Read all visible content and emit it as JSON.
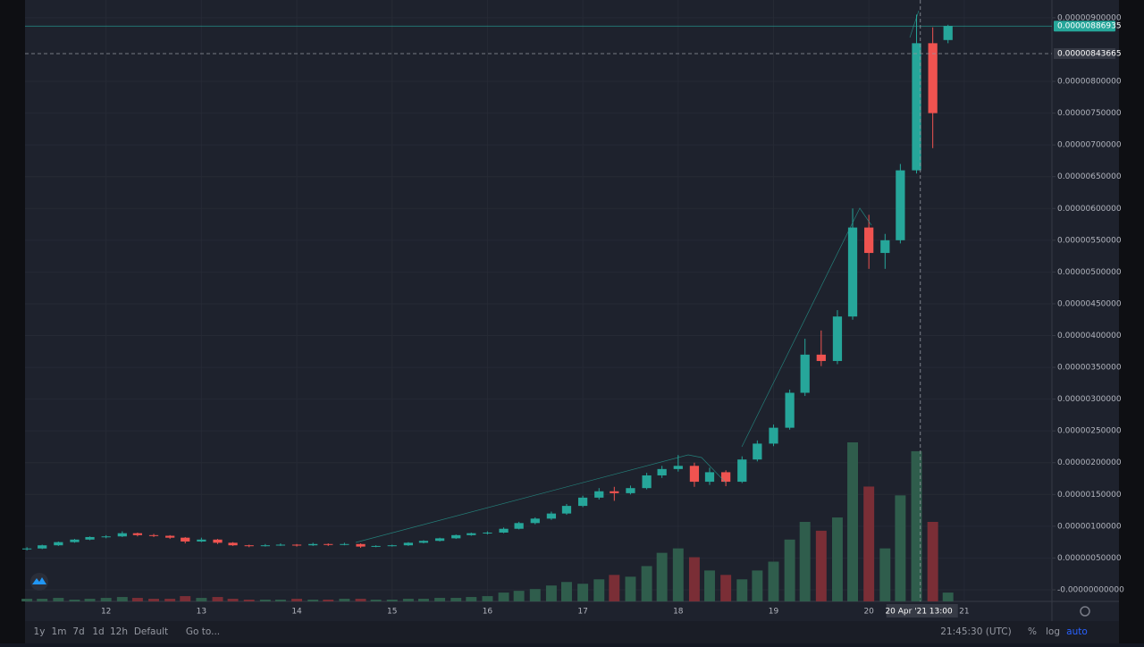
{
  "chart_data": {
    "type": "candlestick",
    "x": [
      11.17,
      11.33,
      11.5,
      11.67,
      11.83,
      12,
      12.17,
      12.33,
      12.5,
      12.67,
      12.83,
      13,
      13.17,
      13.33,
      13.5,
      13.67,
      13.83,
      14,
      14.17,
      14.33,
      14.5,
      14.67,
      14.83,
      15,
      15.17,
      15.33,
      15.5,
      15.67,
      15.83,
      16,
      16.17,
      16.33,
      16.5,
      16.67,
      16.83,
      17,
      17.17,
      17.33,
      17.5,
      17.67,
      17.83,
      18,
      18.17,
      18.33,
      18.5,
      18.67,
      18.83,
      19,
      19.17,
      19.33,
      19.5,
      19.67,
      19.83,
      20,
      20.17,
      20.33,
      20.5,
      20.67,
      20.83
    ],
    "candles": [
      [
        6.4e-07,
        6.7e-07,
        6.2e-07,
        6.5e-07
      ],
      [
        6.5e-07,
        7.1e-07,
        6.4e-07,
        7e-07
      ],
      [
        7e-07,
        7.6e-07,
        6.9e-07,
        7.5e-07
      ],
      [
        7.5e-07,
        8e-07,
        7.4e-07,
        7.9e-07
      ],
      [
        7.9e-07,
        8.4e-07,
        7.8e-07,
        8.3e-07
      ],
      [
        8.3e-07,
        8.6e-07,
        8.1e-07,
        8.4e-07
      ],
      [
        8.4e-07,
        9.2e-07,
        8.3e-07,
        8.9e-07
      ],
      [
        8.9e-07,
        9e-07,
        8.4e-07,
        8.6e-07
      ],
      [
        8.6e-07,
        8.8e-07,
        8.3e-07,
        8.5e-07
      ],
      [
        8.5e-07,
        8.6e-07,
        8e-07,
        8.2e-07
      ],
      [
        8.2e-07,
        8.3e-07,
        7.3e-07,
        7.6e-07
      ],
      [
        7.6e-07,
        8.2e-07,
        7.5e-07,
        7.9e-07
      ],
      [
        7.9e-07,
        8e-07,
        7.2e-07,
        7.4e-07
      ],
      [
        7.4e-07,
        7.5e-07,
        6.9e-07,
        7e-07
      ],
      [
        7e-07,
        7.1e-07,
        6.7e-07,
        6.9e-07
      ],
      [
        6.9e-07,
        7.2e-07,
        6.8e-07,
        7e-07
      ],
      [
        7e-07,
        7.3e-07,
        6.9e-07,
        7.1e-07
      ],
      [
        7.1e-07,
        7.2e-07,
        6.8e-07,
        7e-07
      ],
      [
        7e-07,
        7.4e-07,
        6.9e-07,
        7.2e-07
      ],
      [
        7.2e-07,
        7.3e-07,
        6.9e-07,
        7.1e-07
      ],
      [
        7.1e-07,
        7.4e-07,
        7e-07,
        7.2e-07
      ],
      [
        7.2e-07,
        7.3e-07,
        6.6e-07,
        6.8e-07
      ],
      [
        6.8e-07,
        7e-07,
        6.7e-07,
        6.9e-07
      ],
      [
        6.9e-07,
        7.1e-07,
        6.8e-07,
        7e-07
      ],
      [
        7e-07,
        7.5e-07,
        6.9e-07,
        7.4e-07
      ],
      [
        7.4e-07,
        7.8e-07,
        7.3e-07,
        7.7e-07
      ],
      [
        7.7e-07,
        8.2e-07,
        7.6e-07,
        8.1e-07
      ],
      [
        8.1e-07,
        8.7e-07,
        8e-07,
        8.6e-07
      ],
      [
        8.6e-07,
        9e-07,
        8.5e-07,
        8.9e-07
      ],
      [
        8.9e-07,
        9.2e-07,
        8.7e-07,
        9e-07
      ],
      [
        9e-07,
        9.8e-07,
        8.9e-07,
        9.6e-07
      ],
      [
        9.6e-07,
        1.07e-06,
        9.5e-07,
        1.05e-06
      ],
      [
        1.05e-06,
        1.14e-06,
        1.03e-06,
        1.12e-06
      ],
      [
        1.12e-06,
        1.23e-06,
        1.1e-06,
        1.2e-06
      ],
      [
        1.2e-06,
        1.35e-06,
        1.18e-06,
        1.32e-06
      ],
      [
        1.32e-06,
        1.48e-06,
        1.3e-06,
        1.45e-06
      ],
      [
        1.45e-06,
        1.6e-06,
        1.42e-06,
        1.55e-06
      ],
      [
        1.55e-06,
        1.62e-06,
        1.4e-06,
        1.52e-06
      ],
      [
        1.52e-06,
        1.64e-06,
        1.5e-06,
        1.6e-06
      ],
      [
        1.6e-06,
        1.84e-06,
        1.58e-06,
        1.8e-06
      ],
      [
        1.8e-06,
        1.95e-06,
        1.76e-06,
        1.9e-06
      ],
      [
        1.9e-06,
        2.12e-06,
        1.86e-06,
        1.95e-06
      ],
      [
        1.95e-06,
        2e-06,
        1.62e-06,
        1.7e-06
      ],
      [
        1.7e-06,
        1.92e-06,
        1.65e-06,
        1.85e-06
      ],
      [
        1.85e-06,
        1.88e-06,
        1.63e-06,
        1.7e-06
      ],
      [
        1.7e-06,
        2.1e-06,
        1.68e-06,
        2.05e-06
      ],
      [
        2.05e-06,
        2.35e-06,
        2.02e-06,
        2.3e-06
      ],
      [
        2.3e-06,
        2.6e-06,
        2.26e-06,
        2.55e-06
      ],
      [
        2.55e-06,
        3.15e-06,
        2.52e-06,
        3.1e-06
      ],
      [
        3.1e-06,
        3.95e-06,
        3.05e-06,
        3.7e-06
      ],
      [
        3.7e-06,
        4.08e-06,
        3.52e-06,
        3.6e-06
      ],
      [
        3.6e-06,
        4.4e-06,
        3.55e-06,
        4.3e-06
      ],
      [
        4.3e-06,
        6e-06,
        4.25e-06,
        5.7e-06
      ],
      [
        5.7e-06,
        5.9e-06,
        5.05e-06,
        5.3e-06
      ],
      [
        5.3e-06,
        5.6e-06,
        5.05e-06,
        5.5e-06
      ],
      [
        5.5e-06,
        6.7e-06,
        5.45e-06,
        6.6e-06
      ],
      [
        6.6e-06,
        9.05e-06,
        6.55e-06,
        8.6e-06
      ],
      [
        8.6e-06,
        8.85e-06,
        6.95e-06,
        7.5e-06
      ],
      [
        8.65e-06,
        8.89e-06,
        8.6e-06,
        8.87e-06
      ]
    ],
    "volume": [
      3,
      3,
      4,
      2,
      3,
      4,
      5,
      4,
      3,
      3,
      6,
      4,
      5,
      3,
      2,
      2,
      2,
      3,
      2,
      2,
      3,
      3,
      2,
      2,
      3,
      3,
      4,
      4,
      5,
      6,
      10,
      12,
      14,
      18,
      22,
      20,
      25,
      30,
      28,
      40,
      55,
      60,
      50,
      35,
      30,
      25,
      35,
      45,
      70,
      90,
      80,
      95,
      180,
      130,
      60,
      120,
      170,
      90,
      10
    ],
    "up_color": "#26a69a",
    "down_color": "#ef5350",
    "up_volume_color": "#2f5d4c",
    "down_volume_color": "#7a2e36",
    "xlim": [
      11.15,
      21.92
    ],
    "xticks": [
      12,
      13,
      14,
      15,
      16,
      17,
      18,
      19,
      20,
      21
    ],
    "ylim": [
      -1.83e-07,
      9.28e-06
    ],
    "yticks": [
      {
        "value": 0,
        "label": "-0.00000000000"
      },
      {
        "value": 5e-07,
        "label": "0.00000050000"
      },
      {
        "value": 1e-06,
        "label": "0.00000100000"
      },
      {
        "value": 1.5e-06,
        "label": "0.00000150000"
      },
      {
        "value": 2e-06,
        "label": "0.00000200000"
      },
      {
        "value": 2.5e-06,
        "label": "0.00000250000"
      },
      {
        "value": 3e-06,
        "label": "0.00000300000"
      },
      {
        "value": 3.5e-06,
        "label": "0.00000350000"
      },
      {
        "value": 4e-06,
        "label": "0.00000400000"
      },
      {
        "value": 4.5e-06,
        "label": "0.00000450000"
      },
      {
        "value": 5e-06,
        "label": "0.00000500000"
      },
      {
        "value": 5.5e-06,
        "label": "0.00000550000"
      },
      {
        "value": 6e-06,
        "label": "0.00000600000"
      },
      {
        "value": 6.5e-06,
        "label": "0.00000650000"
      },
      {
        "value": 7e-06,
        "label": "0.00000700000"
      },
      {
        "value": 7.5e-06,
        "label": "0.00000750000"
      },
      {
        "value": 8e-06,
        "label": "0.00000800000"
      },
      {
        "value": 9e-06,
        "label": "0.00000900000"
      }
    ],
    "grid": true,
    "last_price": {
      "value": 8.86935e-06,
      "label": "0.00000886935"
    },
    "crosshair": {
      "x": 20.54,
      "y": {
        "value": 8.43665e-06,
        "label": "0.00000843665"
      },
      "date": "20 Apr '21",
      "time": "13:00"
    }
  },
  "toolbar": {
    "ranges": [
      "1y",
      "1m",
      "7d",
      "1d",
      "12h"
    ],
    "default": "Default",
    "goto": "Go to...",
    "clock": "21:45:30 (UTC)",
    "percent": "%",
    "log": "log",
    "auto": "auto"
  }
}
